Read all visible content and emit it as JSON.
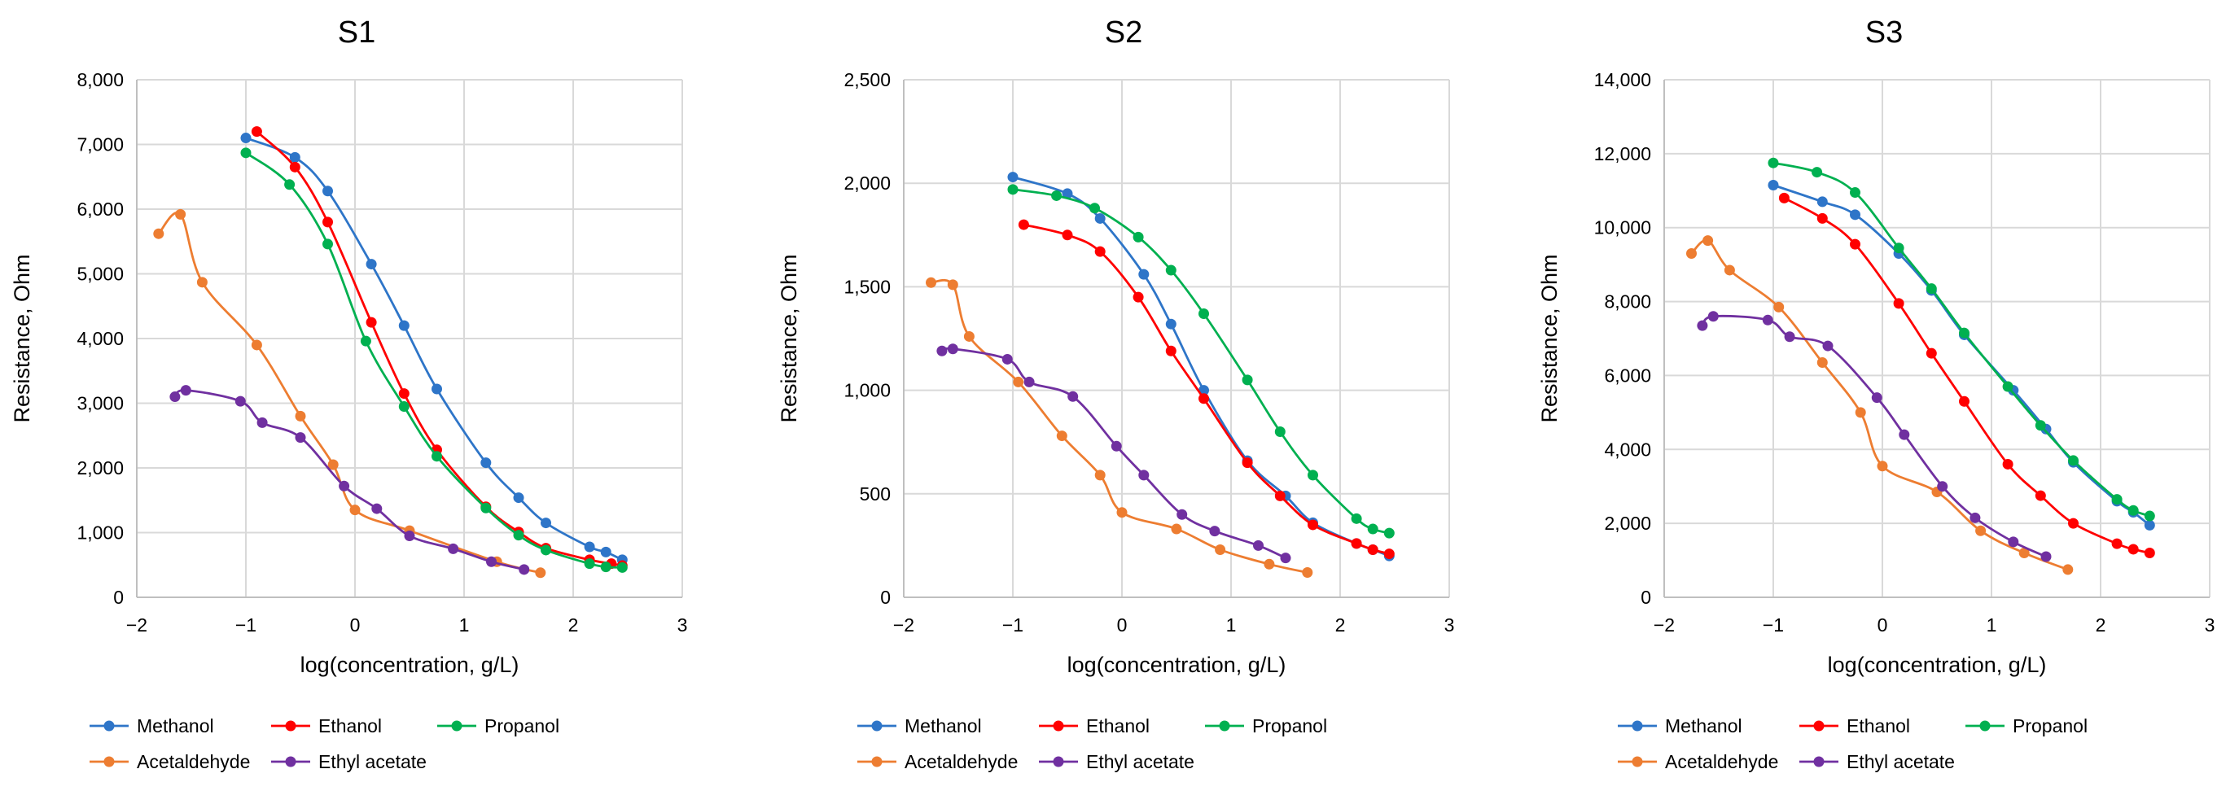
{
  "colors": {
    "methanol": "#2E75C8",
    "ethanol": "#FF0000",
    "propanol": "#00B050",
    "acetaldehyde": "#ED7D31",
    "ethyl_acetate": "#7030A0",
    "grid": "#D9D9D9",
    "axis": "#BFBFBF",
    "text": "#000000"
  },
  "chart_data": [
    {
      "type": "line",
      "title": "S1",
      "xlabel": "log(concentration, g/L)",
      "ylabel": "Resistance, Ohm",
      "xlim": [
        -2,
        3
      ],
      "ylim": [
        0,
        8000
      ],
      "xticks": [
        -2,
        -1,
        0,
        1,
        2,
        3
      ],
      "xtick_labels": [
        "−2",
        "−1",
        "0",
        "1",
        "2",
        "3"
      ],
      "yticks": [
        0,
        1000,
        2000,
        3000,
        4000,
        5000,
        6000,
        7000,
        8000
      ],
      "ytick_labels": [
        "0",
        "1,000",
        "2,000",
        "3,000",
        "4,000",
        "5,000",
        "6,000",
        "7,000",
        "8,000"
      ],
      "grid": true,
      "series": [
        {
          "name": "Methanol",
          "color_key": "methanol",
          "x": [
            -1.0,
            -0.55,
            -0.25,
            0.15,
            0.45,
            0.75,
            1.2,
            1.5,
            1.75,
            2.15,
            2.3,
            2.45
          ],
          "y": [
            7100,
            6800,
            6280,
            5150,
            4200,
            3220,
            2080,
            1540,
            1150,
            780,
            700,
            580
          ]
        },
        {
          "name": "Ethanol",
          "color_key": "ethanol",
          "x": [
            -0.9,
            -0.55,
            -0.25,
            0.15,
            0.45,
            0.75,
            1.2,
            1.5,
            1.75,
            2.15,
            2.35,
            2.45
          ],
          "y": [
            7200,
            6650,
            5800,
            4250,
            3150,
            2280,
            1400,
            1010,
            760,
            580,
            520,
            490
          ]
        },
        {
          "name": "Propanol",
          "color_key": "propanol",
          "x": [
            -1.0,
            -0.6,
            -0.25,
            0.1,
            0.45,
            0.75,
            1.2,
            1.5,
            1.75,
            2.15,
            2.3,
            2.45
          ],
          "y": [
            6870,
            6380,
            5460,
            3960,
            2950,
            2180,
            1380,
            960,
            730,
            520,
            470,
            460
          ]
        },
        {
          "name": "Acetaldehyde",
          "color_key": "acetaldehyde",
          "x": [
            -1.8,
            -1.6,
            -1.4,
            -0.9,
            -0.5,
            -0.2,
            0.0,
            0.5,
            1.3,
            1.7
          ],
          "y": [
            5620,
            5920,
            4870,
            3900,
            2800,
            2050,
            1350,
            1030,
            550,
            380
          ]
        },
        {
          "name": "Ethyl acetate",
          "color_key": "ethyl_acetate",
          "x": [
            -1.65,
            -1.55,
            -1.05,
            -0.85,
            -0.5,
            -0.1,
            0.2,
            0.5,
            0.9,
            1.25,
            1.55
          ],
          "y": [
            3100,
            3200,
            3030,
            2700,
            2470,
            1720,
            1370,
            950,
            750,
            550,
            430
          ]
        }
      ]
    },
    {
      "type": "line",
      "title": "S2",
      "xlabel": "log(concentration, g/L)",
      "ylabel": "Resistance, Ohm",
      "xlim": [
        -2,
        3
      ],
      "ylim": [
        0,
        2500
      ],
      "xticks": [
        -2,
        -1,
        0,
        1,
        2,
        3
      ],
      "xtick_labels": [
        "−2",
        "−1",
        "0",
        "1",
        "2",
        "3"
      ],
      "yticks": [
        0,
        500,
        1000,
        1500,
        2000,
        2500
      ],
      "ytick_labels": [
        "0",
        "500",
        "1,000",
        "1,500",
        "2,000",
        "2,500"
      ],
      "grid": true,
      "series": [
        {
          "name": "Methanol",
          "color_key": "methanol",
          "x": [
            -1.0,
            -0.5,
            -0.2,
            0.2,
            0.45,
            0.75,
            1.15,
            1.5,
            1.75,
            2.15,
            2.3,
            2.45
          ],
          "y": [
            2030,
            1950,
            1830,
            1560,
            1320,
            1000,
            660,
            490,
            360,
            260,
            230,
            200
          ]
        },
        {
          "name": "Ethanol",
          "color_key": "ethanol",
          "x": [
            -0.9,
            -0.5,
            -0.2,
            0.15,
            0.45,
            0.75,
            1.15,
            1.45,
            1.75,
            2.15,
            2.3,
            2.45
          ],
          "y": [
            1800,
            1750,
            1670,
            1450,
            1190,
            960,
            650,
            490,
            350,
            260,
            230,
            210
          ]
        },
        {
          "name": "Propanol",
          "color_key": "propanol",
          "x": [
            -1.0,
            -0.6,
            -0.25,
            0.15,
            0.45,
            0.75,
            1.15,
            1.45,
            1.75,
            2.15,
            2.3,
            2.45
          ],
          "y": [
            1970,
            1940,
            1880,
            1740,
            1580,
            1370,
            1050,
            800,
            590,
            380,
            330,
            310
          ]
        },
        {
          "name": "Acetaldehyde",
          "color_key": "acetaldehyde",
          "x": [
            -1.75,
            -1.55,
            -1.4,
            -0.95,
            -0.55,
            -0.2,
            0.0,
            0.5,
            0.9,
            1.35,
            1.7
          ],
          "y": [
            1520,
            1510,
            1260,
            1040,
            780,
            590,
            410,
            330,
            230,
            160,
            120
          ]
        },
        {
          "name": "Ethyl acetate",
          "color_key": "ethyl_acetate",
          "x": [
            -1.65,
            -1.55,
            -1.05,
            -0.85,
            -0.45,
            -0.05,
            0.2,
            0.55,
            0.85,
            1.25,
            1.5
          ],
          "y": [
            1190,
            1200,
            1150,
            1040,
            970,
            730,
            590,
            400,
            320,
            250,
            190
          ]
        }
      ]
    },
    {
      "type": "line",
      "title": "S3",
      "xlabel": "log(concentration, g/L)",
      "ylabel": "Resistance, Ohm",
      "xlim": [
        -2,
        3
      ],
      "ylim": [
        0,
        14000
      ],
      "xticks": [
        -2,
        -1,
        0,
        1,
        2,
        3
      ],
      "xtick_labels": [
        "−2",
        "−1",
        "0",
        "1",
        "2",
        "3"
      ],
      "yticks": [
        0,
        2000,
        4000,
        6000,
        8000,
        10000,
        12000,
        14000
      ],
      "ytick_labels": [
        "0",
        "2,000",
        "4,000",
        "6,000",
        "8,000",
        "10,000",
        "12,000",
        "14,000"
      ],
      "grid": true,
      "series": [
        {
          "name": "Methanol",
          "color_key": "methanol",
          "x": [
            -1.0,
            -0.55,
            -0.25,
            0.15,
            0.45,
            0.75,
            1.2,
            1.5,
            1.75,
            2.15,
            2.3,
            2.45
          ],
          "y": [
            11150,
            10700,
            10350,
            9300,
            8300,
            7100,
            5600,
            4550,
            3650,
            2600,
            2300,
            1950
          ]
        },
        {
          "name": "Ethanol",
          "color_key": "ethanol",
          "x": [
            -0.9,
            -0.55,
            -0.25,
            0.15,
            0.45,
            0.75,
            1.15,
            1.45,
            1.75,
            2.15,
            2.3,
            2.45
          ],
          "y": [
            10800,
            10250,
            9550,
            7950,
            6600,
            5300,
            3600,
            2750,
            2000,
            1450,
            1300,
            1200
          ]
        },
        {
          "name": "Propanol",
          "color_key": "propanol",
          "x": [
            -1.0,
            -0.6,
            -0.25,
            0.15,
            0.45,
            0.75,
            1.15,
            1.45,
            1.75,
            2.15,
            2.3,
            2.45
          ],
          "y": [
            11750,
            11500,
            10950,
            9450,
            8350,
            7150,
            5700,
            4650,
            3700,
            2650,
            2350,
            2200
          ]
        },
        {
          "name": "Acetaldehyde",
          "color_key": "acetaldehyde",
          "x": [
            -1.75,
            -1.6,
            -1.4,
            -0.95,
            -0.55,
            -0.2,
            0.0,
            0.5,
            0.9,
            1.3,
            1.7
          ],
          "y": [
            9300,
            9650,
            8850,
            7850,
            6350,
            5000,
            3550,
            2850,
            1800,
            1200,
            750
          ]
        },
        {
          "name": "Ethyl acetate",
          "color_key": "ethyl_acetate",
          "x": [
            -1.65,
            -1.55,
            -1.05,
            -0.85,
            -0.5,
            -0.05,
            0.2,
            0.55,
            0.85,
            1.2,
            1.5
          ],
          "y": [
            7350,
            7600,
            7500,
            7050,
            6800,
            5400,
            4400,
            3000,
            2150,
            1500,
            1100
          ]
        }
      ]
    }
  ]
}
